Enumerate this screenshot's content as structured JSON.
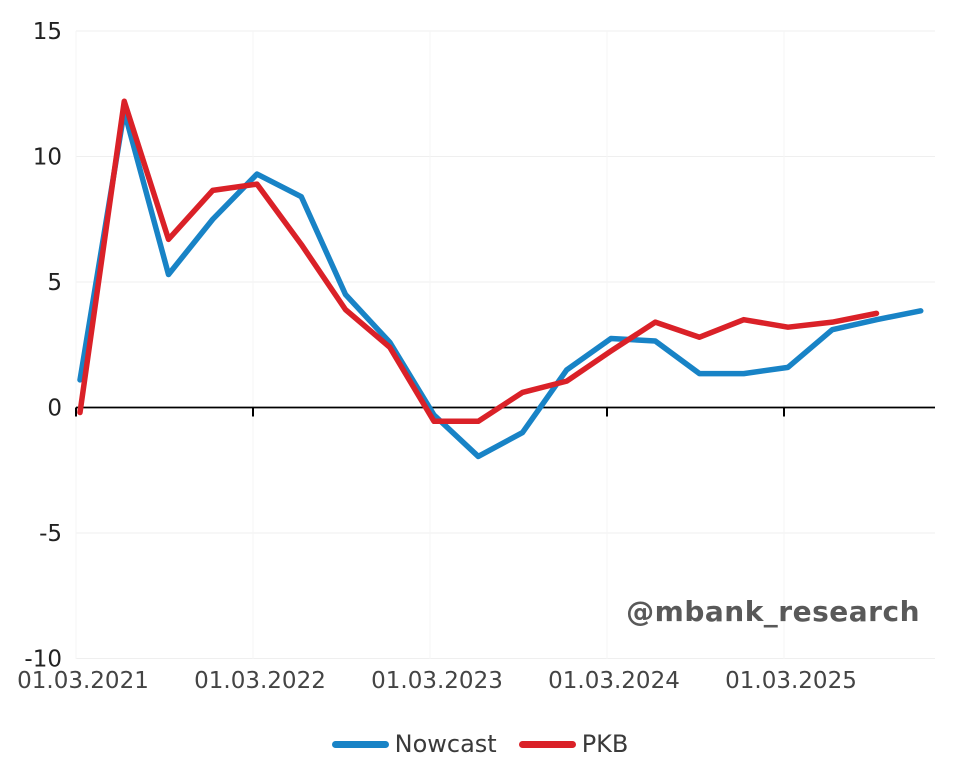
{
  "watermark": "@mbank_research",
  "chart_data": {
    "type": "line",
    "title": "",
    "xlabel": "",
    "ylabel": "",
    "ylim": [
      -10,
      15
    ],
    "y_ticks": [
      15,
      10,
      5,
      0,
      -5,
      -10
    ],
    "x_tick_labels": [
      "01.03.2021",
      "01.03.2022",
      "01.03.2023",
      "01.03.2024",
      "01.03.2025"
    ],
    "x_frequency": "quarterly",
    "grid": true,
    "legend_position": "bottom-center",
    "x": [
      "01.03.2021",
      "01.06.2021",
      "01.09.2021",
      "01.12.2021",
      "01.03.2022",
      "01.06.2022",
      "01.09.2022",
      "01.12.2022",
      "01.03.2023",
      "01.06.2023",
      "01.09.2023",
      "01.12.2023",
      "01.03.2024",
      "01.06.2024",
      "01.09.2024",
      "01.12.2024",
      "01.03.2025",
      "01.06.2025",
      "01.09.2025",
      "01.12.2025"
    ],
    "series": [
      {
        "name": "Nowcast",
        "color": "#1883c6",
        "values": [
          1.1,
          11.8,
          5.3,
          7.5,
          9.3,
          8.4,
          4.5,
          2.6,
          -0.3,
          -1.95,
          -1.0,
          1.5,
          2.75,
          2.65,
          1.35,
          1.35,
          1.6,
          3.1,
          3.5,
          3.85
        ]
      },
      {
        "name": "PKB",
        "color": "#da2128",
        "values": [
          -0.2,
          12.2,
          6.7,
          8.65,
          8.9,
          6.5,
          3.9,
          2.4,
          -0.55,
          -0.55,
          0.6,
          1.05,
          2.25,
          3.4,
          2.8,
          3.5,
          3.2,
          3.4,
          3.75
        ]
      }
    ],
    "axis_colors": {
      "zero_line": "#000000",
      "gridline_h": "#efefef",
      "gridline_v": "#f4f4f4",
      "y_tick_text": "#222222",
      "x_tick_text": "#444444"
    }
  }
}
